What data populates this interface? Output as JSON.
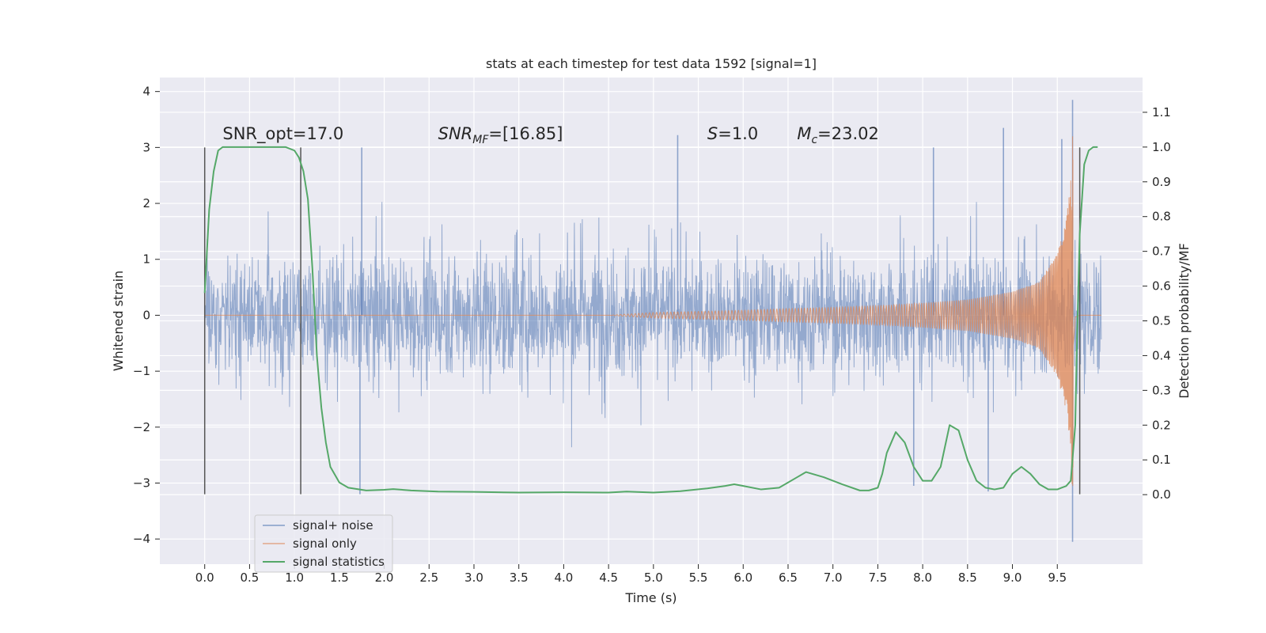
{
  "chart_data": {
    "type": "line",
    "title": "stats at each timestep for test data 1592 [signal=1]",
    "xlabel": "Time (s)",
    "ylabel_left": "Whitened strain",
    "ylabel_right": "Detection probability/MF",
    "xlim": [
      -0.5,
      10.45
    ],
    "ylim_left": [
      -4.45,
      4.25
    ],
    "ylim_right": [
      -0.2,
      1.2
    ],
    "x_ticks": [
      "0.0",
      "0.5",
      "1.0",
      "1.5",
      "2.0",
      "2.5",
      "3.0",
      "3.5",
      "4.0",
      "4.5",
      "5.0",
      "5.5",
      "6.0",
      "6.5",
      "7.0",
      "7.5",
      "8.0",
      "8.5",
      "9.0",
      "9.5"
    ],
    "x_tick_values": [
      0,
      0.5,
      1,
      1.5,
      2,
      2.5,
      3,
      3.5,
      4,
      4.5,
      5,
      5.5,
      6,
      6.5,
      7,
      7.5,
      8,
      8.5,
      9,
      9.5
    ],
    "y_ticks_left": [
      "−4",
      "−3",
      "−2",
      "−1",
      "0",
      "1",
      "2",
      "3",
      "4"
    ],
    "y_tick_values_left": [
      -4,
      -3,
      -2,
      -1,
      0,
      1,
      2,
      3,
      4
    ],
    "y_ticks_right": [
      "0.0",
      "0.1",
      "0.2",
      "0.3",
      "0.4",
      "0.5",
      "0.6",
      "0.7",
      "0.8",
      "0.9",
      "1.0",
      "1.1"
    ],
    "y_tick_values_right": [
      0,
      0.1,
      0.2,
      0.3,
      0.4,
      0.5,
      0.6,
      0.7,
      0.8,
      0.9,
      1.0,
      1.1
    ],
    "grid": true,
    "legend_position": "lower-left",
    "annotations": {
      "snr_opt": "SNR_opt=17.0",
      "snr_mf_base": "SNR",
      "snr_mf_sub": "MF",
      "snr_mf_value": "=[16.85]",
      "s_symbol": "S",
      "s_value": "=1.0",
      "mc_base": "M",
      "mc_sub": "c",
      "mc_value": "=23.02"
    },
    "vertical_markers": [
      0.0,
      1.07,
      9.75
    ],
    "vertical_marker_range": [
      -3.2,
      3.0
    ],
    "series": [
      {
        "name": "signal+ noise",
        "color": "#4c72b0",
        "axis": "left",
        "x_start": 0.0,
        "x_end": 9.99,
        "typical_band": [
          -1.35,
          1.15
        ],
        "peak_envelope": [
          -2.4,
          2.3
        ],
        "notable_extremes": [
          {
            "x": 9.67,
            "y": 3.85
          },
          {
            "x": 9.67,
            "y": -4.05
          },
          {
            "x": 5.27,
            "y": 3.22
          },
          {
            "x": 8.9,
            "y": 3.35
          },
          {
            "x": 1.73,
            "y": -3.2
          },
          {
            "x": 8.73,
            "y": -3.15
          },
          {
            "x": 7.9,
            "y": -3.05
          },
          {
            "x": 1.75,
            "y": 3.0
          },
          {
            "x": 8.12,
            "y": 3.0
          },
          {
            "x": 9.55,
            "y": 3.15
          }
        ]
      },
      {
        "name": "signal only",
        "color": "#dd8452",
        "axis": "left",
        "x": [
          0.0,
          4.5,
          5.0,
          5.5,
          6.0,
          6.5,
          7.0,
          7.5,
          8.0,
          8.5,
          9.0,
          9.3,
          9.5,
          9.6,
          9.65,
          9.67,
          9.7,
          9.75,
          9.99
        ],
        "envelope": [
          0.0,
          0.0,
          0.05,
          0.07,
          0.09,
          0.12,
          0.14,
          0.17,
          0.22,
          0.28,
          0.42,
          0.6,
          1.1,
          1.7,
          2.4,
          3.3,
          0.15,
          0.0,
          0.0
        ]
      },
      {
        "name": "signal statistics",
        "color": "#55a868",
        "axis": "right",
        "x": [
          0.0,
          0.05,
          0.1,
          0.15,
          0.2,
          0.3,
          0.5,
          0.7,
          0.9,
          1.0,
          1.05,
          1.1,
          1.15,
          1.2,
          1.25,
          1.3,
          1.35,
          1.4,
          1.5,
          1.6,
          1.8,
          2.0,
          2.1,
          2.3,
          2.6,
          3.0,
          3.5,
          4.0,
          4.5,
          4.7,
          5.0,
          5.3,
          5.6,
          5.8,
          5.9,
          6.0,
          6.2,
          6.4,
          6.6,
          6.7,
          6.9,
          7.1,
          7.3,
          7.4,
          7.5,
          7.55,
          7.6,
          7.7,
          7.8,
          7.9,
          8.0,
          8.1,
          8.2,
          8.25,
          8.3,
          8.4,
          8.5,
          8.6,
          8.7,
          8.8,
          8.9,
          9.0,
          9.1,
          9.2,
          9.3,
          9.4,
          9.5,
          9.55,
          9.6,
          9.65,
          9.7,
          9.72,
          9.75,
          9.8,
          9.85,
          9.9,
          9.95
        ],
        "values": [
          0.58,
          0.82,
          0.93,
          0.99,
          1.0,
          1.0,
          1.0,
          1.0,
          1.0,
          0.99,
          0.97,
          0.93,
          0.85,
          0.65,
          0.4,
          0.25,
          0.15,
          0.08,
          0.035,
          0.02,
          0.012,
          0.014,
          0.016,
          0.012,
          0.009,
          0.008,
          0.006,
          0.007,
          0.006,
          0.009,
          0.006,
          0.01,
          0.018,
          0.025,
          0.03,
          0.025,
          0.015,
          0.02,
          0.05,
          0.065,
          0.05,
          0.03,
          0.012,
          0.012,
          0.02,
          0.06,
          0.12,
          0.18,
          0.15,
          0.08,
          0.04,
          0.04,
          0.08,
          0.14,
          0.2,
          0.185,
          0.1,
          0.04,
          0.02,
          0.015,
          0.02,
          0.06,
          0.08,
          0.06,
          0.03,
          0.015,
          0.015,
          0.02,
          0.025,
          0.04,
          0.2,
          0.45,
          0.75,
          0.95,
          0.99,
          1.0,
          1.0
        ]
      }
    ]
  }
}
